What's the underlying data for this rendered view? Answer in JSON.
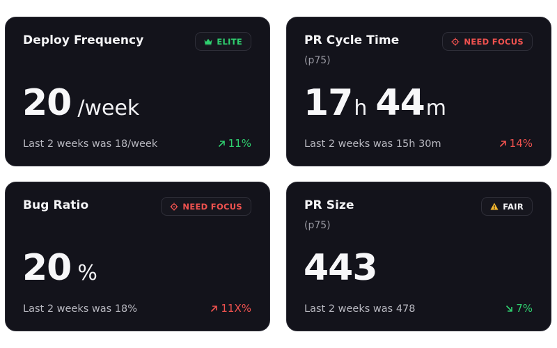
{
  "cards": [
    {
      "title": "Deploy Frequency",
      "badge": {
        "label": "ELITE",
        "icon": "crown-icon",
        "color": "#2fcf6f"
      },
      "value": "20",
      "unit": "/week",
      "footer": "Last 2 weeks was 18/week",
      "delta": "11%",
      "delta_direction": "up"
    },
    {
      "title": "PR Cycle Time",
      "subtitle": "(p75)",
      "badge": {
        "label": "NEED FOCUS",
        "icon": "target-icon",
        "color": "#f0524f"
      },
      "value_hours": "17",
      "unit_hours": "h",
      "value_minutes": "44",
      "unit_minutes": "m",
      "footer": "Last 2 weeks was 15h 30m",
      "delta": "14%",
      "delta_direction": "up"
    },
    {
      "title": "Bug Ratio",
      "badge": {
        "label": "NEED FOCUS",
        "icon": "target-icon",
        "color": "#f0524f"
      },
      "value": "20",
      "unit": "%",
      "footer": "Last 2 weeks was 18%",
      "delta": "11X%",
      "delta_direction": "up"
    },
    {
      "title": "PR Size",
      "subtitle": "(p75)",
      "badge": {
        "label": "FAIR",
        "icon": "warning-icon",
        "color": "#f5b82e"
      },
      "value": "443",
      "footer": "Last 2 weeks was 478",
      "delta": "7%",
      "delta_direction": "down"
    }
  ]
}
